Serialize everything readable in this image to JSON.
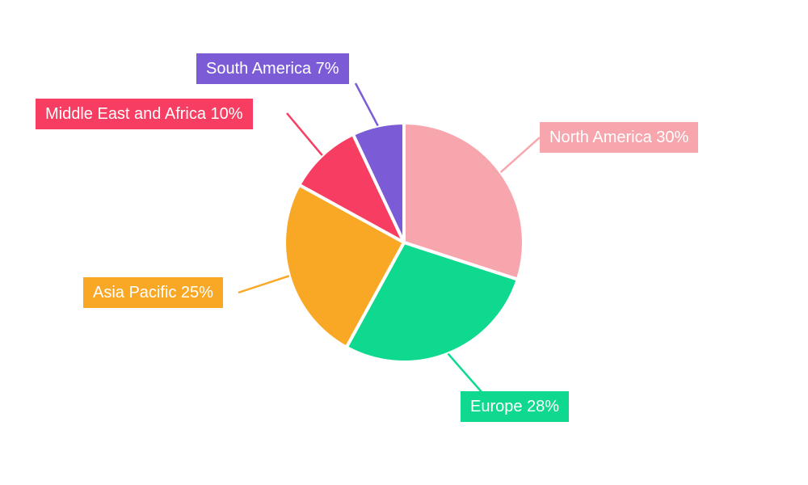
{
  "chart_data": {
    "type": "pie",
    "title": "",
    "legend": "none",
    "background": "#ffffff",
    "direction": "clockwise",
    "start_angle_deg": 0,
    "labels": [
      "North America",
      "Europe",
      "Asia Pacific",
      "Middle East and Africa",
      "South America"
    ],
    "values": [
      30,
      28,
      25,
      10,
      7
    ],
    "display_labels": [
      "North America 30%",
      "Europe 28%",
      "Asia Pacific 25%",
      "Middle East and Africa 10%",
      "South America 7%"
    ],
    "colors": [
      "#F7A6AD",
      "#0ED98E",
      "#F9A825",
      "#F73E62",
      "#7B5CD6"
    ],
    "label_text_color": "#ffffff",
    "slice_gap_color": "#ffffff"
  }
}
